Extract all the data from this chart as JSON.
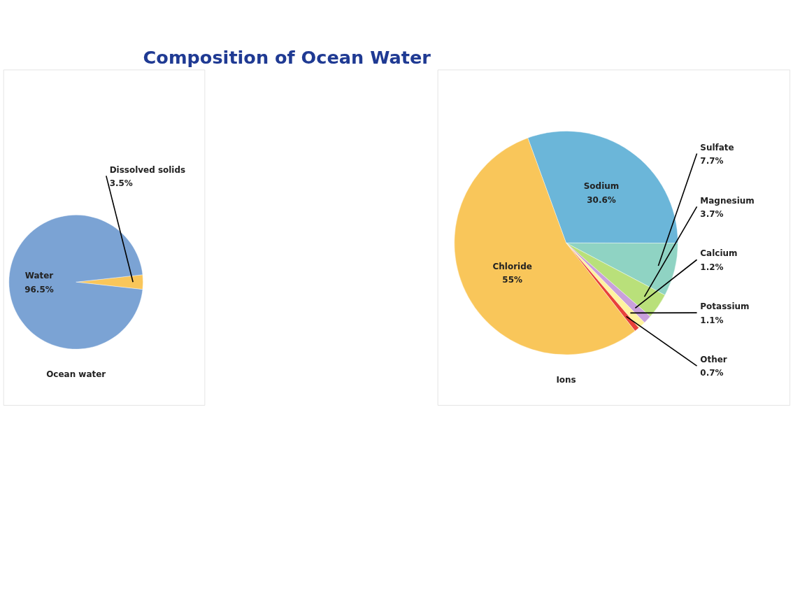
{
  "chart_data": [
    {
      "type": "pie",
      "title": "Composition of Ocean Water",
      "xlabel": "Ocean water",
      "categories": [
        "Dissolved solids",
        "Water"
      ],
      "values": [
        3.5,
        96.5
      ],
      "colors": [
        "#f9c65a",
        "#7ba3d4"
      ],
      "data_labels": true,
      "value_labels": [
        "3.5%",
        "96.5%"
      ]
    },
    {
      "type": "pie",
      "xlabel": "Ions",
      "categories": [
        "Sodium",
        "Sulfate",
        "Magnesium",
        "Calcium",
        "Potassium",
        "Other",
        "Chloride"
      ],
      "values": [
        30.6,
        7.7,
        3.7,
        1.2,
        1.1,
        0.7,
        55
      ],
      "colors": [
        "#6bb6d9",
        "#8fd3c3",
        "#b9e07a",
        "#c9a0dc",
        "#fff3a0",
        "#e8413a",
        "#f9c65a"
      ],
      "data_labels": true,
      "value_labels": [
        "30.6%",
        "7.7%",
        "3.7%",
        "1.2%",
        "1.1%",
        "0.7%",
        "55%"
      ]
    }
  ]
}
